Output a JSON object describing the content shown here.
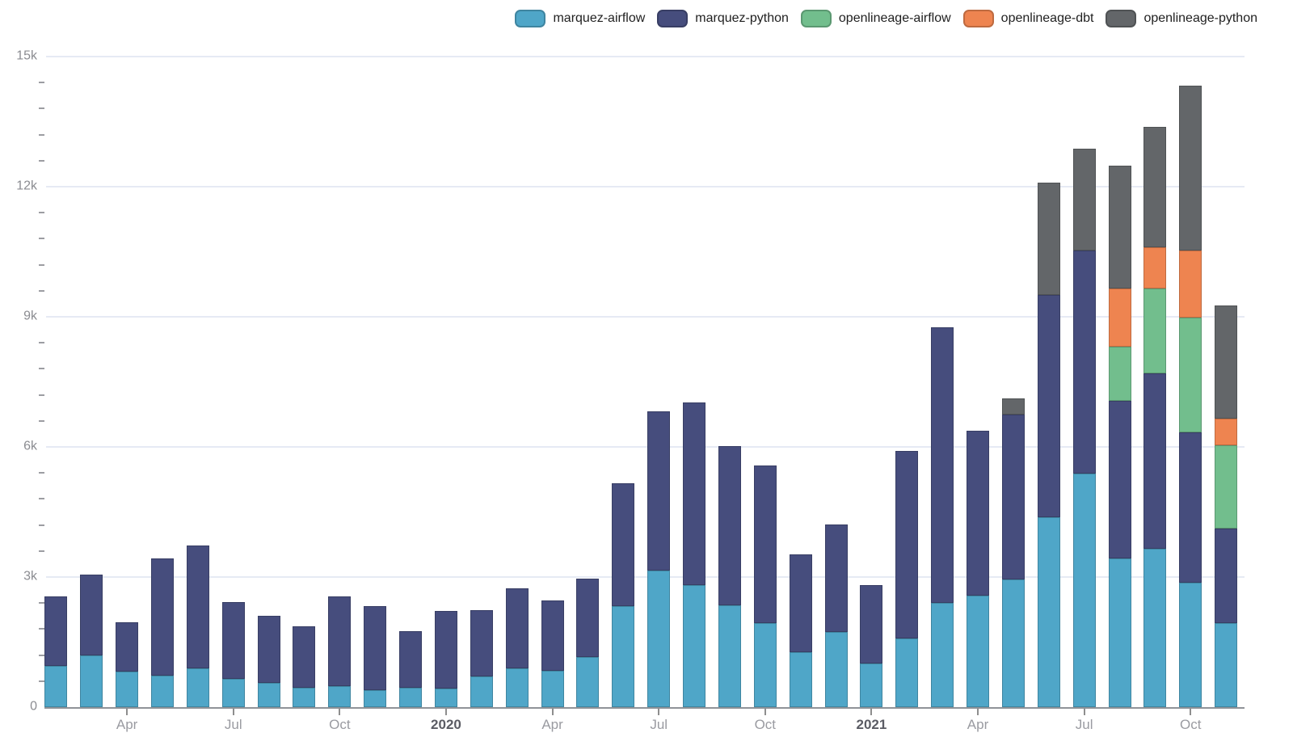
{
  "legend": {
    "items": [
      {
        "label": "marquez-airflow",
        "color": "#4FA6C8"
      },
      {
        "label": "marquez-python",
        "color": "#464D7D"
      },
      {
        "label": "openlineage-airflow",
        "color": "#72BE8D"
      },
      {
        "label": "openlineage-dbt",
        "color": "#EE8450"
      },
      {
        "label": "openlineage-python",
        "color": "#636669"
      }
    ]
  },
  "chart_data": {
    "type": "bar",
    "stacked": true,
    "title": "",
    "legend_position": "top-right",
    "grid": true,
    "categories": [
      "Feb 2019",
      "Mar 2019",
      "Apr 2019",
      "May 2019",
      "Jun 2019",
      "Jul 2019",
      "Aug 2019",
      "Sep 2019",
      "Oct 2019",
      "Nov 2019",
      "Dec 2019",
      "Jan 2020",
      "Feb 2020",
      "Mar 2020",
      "Apr 2020",
      "May 2020",
      "Jun 2020",
      "Jul 2020",
      "Aug 2020",
      "Sep 2020",
      "Oct 2020",
      "Nov 2020",
      "Dec 2020",
      "Jan 2021",
      "Feb 2021",
      "Mar 2021",
      "Apr 2021",
      "May 2021",
      "Jun 2021",
      "Jul 2021",
      "Aug 2021",
      "Sep 2021",
      "Oct 2021",
      "Nov 2021"
    ],
    "series": [
      {
        "name": "marquez-airflow",
        "color": "#4FA6C8",
        "values": [
          950,
          1200,
          820,
          720,
          900,
          660,
          560,
          440,
          490,
          390,
          440,
          430,
          710,
          900,
          840,
          1150,
          2330,
          3150,
          2820,
          2350,
          1930,
          1270,
          1730,
          1010,
          1590,
          2410,
          2570,
          2950,
          4380,
          5390,
          3430,
          3660,
          2870,
          1930
        ]
      },
      {
        "name": "marquez-python",
        "color": "#464D7D",
        "values": [
          1600,
          1850,
          1130,
          2700,
          2830,
          1770,
          1550,
          1420,
          2070,
          1940,
          1320,
          1790,
          1520,
          1830,
          1620,
          1810,
          2840,
          3670,
          4210,
          3670,
          3640,
          2260,
          2480,
          1800,
          4320,
          6340,
          3810,
          3800,
          5130,
          5140,
          3640,
          4030,
          3470,
          2180
        ]
      },
      {
        "name": "openlineage-airflow",
        "color": "#72BE8D",
        "values": [
          0,
          0,
          0,
          0,
          0,
          0,
          0,
          0,
          0,
          0,
          0,
          0,
          0,
          0,
          0,
          0,
          0,
          0,
          0,
          0,
          0,
          0,
          0,
          0,
          0,
          0,
          0,
          0,
          0,
          0,
          1240,
          1970,
          2640,
          1920
        ]
      },
      {
        "name": "openlineage-dbt",
        "color": "#EE8450",
        "values": [
          0,
          0,
          0,
          0,
          0,
          0,
          0,
          0,
          0,
          0,
          0,
          0,
          0,
          0,
          0,
          0,
          0,
          0,
          0,
          0,
          0,
          0,
          0,
          0,
          0,
          0,
          0,
          0,
          0,
          0,
          1340,
          940,
          1540,
          630
        ]
      },
      {
        "name": "openlineage-python",
        "color": "#636669",
        "values": [
          0,
          0,
          0,
          0,
          0,
          0,
          0,
          0,
          0,
          0,
          0,
          0,
          0,
          0,
          0,
          0,
          0,
          0,
          0,
          0,
          0,
          0,
          0,
          0,
          0,
          0,
          0,
          360,
          2590,
          2340,
          2840,
          2780,
          3810,
          2600
        ]
      }
    ],
    "y_axis": {
      "min": 0,
      "max": 15000,
      "major_step": 3000,
      "minor_step": 600,
      "tick_labels": [
        "0",
        "3k",
        "6k",
        "9k",
        "12k",
        "15k"
      ]
    },
    "x_axis": {
      "ticks": [
        {
          "index": 2,
          "label": "Apr",
          "bold": false
        },
        {
          "index": 5,
          "label": "Jul",
          "bold": false
        },
        {
          "index": 8,
          "label": "Oct",
          "bold": false
        },
        {
          "index": 11,
          "label": "2020",
          "bold": true
        },
        {
          "index": 14,
          "label": "Apr",
          "bold": false
        },
        {
          "index": 17,
          "label": "Jul",
          "bold": false
        },
        {
          "index": 20,
          "label": "Oct",
          "bold": false
        },
        {
          "index": 23,
          "label": "2021",
          "bold": true
        },
        {
          "index": 26,
          "label": "Apr",
          "bold": false
        },
        {
          "index": 29,
          "label": "Jul",
          "bold": false
        },
        {
          "index": 32,
          "label": "Oct",
          "bold": false
        }
      ]
    },
    "colors": {
      "background": "#ffffff",
      "gridline": "#E6EAF4",
      "axis_line": "#8F9398",
      "tick_label": "#9A9BA1",
      "tick_label_bold": "#5B5C64",
      "y_label": "#8B8C91",
      "legend_text": "#1f1f1f"
    }
  }
}
